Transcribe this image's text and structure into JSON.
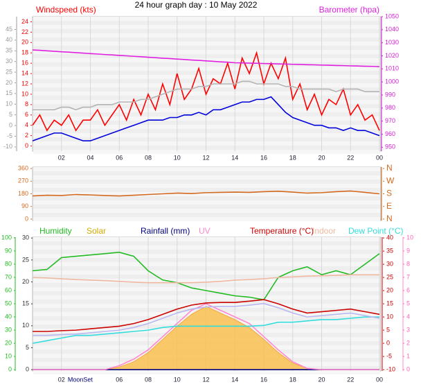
{
  "chart_data": [
    {
      "type": "line",
      "title": "24 hour graph day : 10 May 2022",
      "xlim": [
        0,
        24
      ],
      "xticks": [
        {
          "value": 2,
          "label": "02"
        },
        {
          "value": 4,
          "label": "04"
        },
        {
          "value": 6,
          "label": "06"
        },
        {
          "value": 8,
          "label": "08"
        },
        10,
        12,
        14,
        16,
        18,
        20,
        22,
        {
          "value": 24,
          "label": "00"
        }
      ],
      "grid": true,
      "x": [
        0,
        0.5,
        1,
        1.5,
        2,
        2.5,
        3,
        3.5,
        4,
        4.5,
        5,
        5.5,
        6,
        6.5,
        7,
        7.5,
        8,
        8.5,
        9,
        9.5,
        10,
        10.5,
        11,
        11.5,
        12,
        12.5,
        13,
        13.5,
        14,
        14.5,
        15,
        15.5,
        16,
        16.5,
        17,
        17.5,
        18,
        18.5,
        19,
        19.5,
        20,
        20.5,
        21,
        21.5,
        22,
        22.5,
        23,
        23.5,
        24
      ],
      "ylim": [
        -1,
        25
      ],
      "yticks": [
        0,
        2,
        4,
        6,
        8,
        10,
        12,
        14,
        16,
        18,
        20,
        22,
        24
      ],
      "y3lim": [
        -12,
        51
      ],
      "y3ticks": [
        -10,
        -5,
        0,
        5,
        10,
        15,
        20,
        25,
        30,
        35,
        40,
        45
      ],
      "y2lim": [
        947,
        1050
      ],
      "y2ticks": [
        950,
        960,
        970,
        980,
        990,
        1000,
        1010,
        1020,
        1030,
        1040,
        1050
      ],
      "series": [
        {
          "name": "Windspeed (kts)",
          "color": "#ff0000",
          "values": [
            4,
            6,
            3,
            5,
            4,
            6,
            3,
            5,
            5,
            7,
            4,
            6,
            8,
            5,
            9,
            6,
            10,
            7,
            12,
            8,
            14,
            9,
            11,
            15,
            10,
            13,
            12,
            16,
            11,
            17,
            14,
            18,
            12,
            16,
            13,
            17,
            9,
            12,
            7,
            10,
            6,
            9,
            8,
            11,
            6,
            8,
            5,
            6,
            3
          ]
        },
        {
          "color": "#0000dd",
          "values": [
            1,
            1.5,
            2,
            2.5,
            2.5,
            2,
            1.5,
            1,
            1,
            1.5,
            2,
            2.5,
            3,
            3.5,
            4,
            4.5,
            5,
            5,
            5,
            5.5,
            5.5,
            6,
            6,
            6.5,
            6,
            7,
            7,
            7.5,
            8,
            8.5,
            8.5,
            9,
            9,
            9.5,
            8,
            6.5,
            5.5,
            5,
            4.5,
            4,
            4,
            3.5,
            3.5,
            3,
            3.5,
            3,
            3,
            2.5,
            2
          ]
        },
        {
          "color": "#b4b4b4",
          "values": [
            7,
            7,
            7,
            7,
            7.5,
            7.5,
            7,
            7.5,
            7.5,
            8,
            8,
            8,
            8.5,
            8.5,
            8.5,
            9,
            9,
            9.5,
            10,
            10.5,
            11,
            11,
            11,
            11.5,
            11.5,
            12,
            12,
            12,
            12,
            12.5,
            12.5,
            12,
            12,
            12,
            12,
            11.5,
            11.5,
            11,
            11,
            11,
            11,
            11,
            10.5,
            11,
            11,
            11,
            10.5,
            10.5,
            10.5
          ]
        },
        {
          "name": "Barometer (hpa)",
          "color": "#e020e0",
          "axis": "y2",
          "values": [
            1024.5,
            1024.2,
            1023.8,
            1023.5,
            1023.1,
            1022.8,
            1022.4,
            1022.1,
            1021.7,
            1021.4,
            1021.0,
            1020.7,
            1020.3,
            1020.0,
            1019.6,
            1019.3,
            1018.9,
            1018.6,
            1018.2,
            1017.9,
            1017.5,
            1017.2,
            1016.8,
            1016.5,
            1016.1,
            1015.8,
            1015.4,
            1015.1,
            1014.7,
            1014.6,
            1014.4,
            1014.3,
            1014.1,
            1014.0,
            1013.8,
            1013.7,
            1013.5,
            1013.4,
            1013.2,
            1013.1,
            1012.9,
            1012.8,
            1012.6,
            1012.5,
            1012.3,
            1012.2,
            1012.0,
            1011.9,
            1011.7
          ]
        }
      ]
    },
    {
      "type": "line",
      "xlim": [
        0,
        24
      ],
      "grid": true,
      "x": [
        0,
        1,
        2,
        3,
        4,
        5,
        6,
        7,
        8,
        9,
        10,
        11,
        12,
        13,
        14,
        15,
        16,
        17,
        18,
        19,
        20,
        21,
        22,
        23,
        24
      ],
      "ylim": [
        -10,
        370
      ],
      "yticks": [
        0,
        90,
        180,
        270,
        360
      ],
      "y2lim": [
        -10,
        370
      ],
      "y2ticks": [
        {
          "value": 360,
          "label": "N"
        },
        {
          "value": 270,
          "label": "W"
        },
        {
          "value": 180,
          "label": "S"
        },
        {
          "value": 90,
          "label": "E"
        },
        {
          "value": 0,
          "label": "N"
        }
      ],
      "series": [
        {
          "color": "#d2691e",
          "values": [
            165,
            170,
            168,
            175,
            172,
            168,
            165,
            170,
            175,
            180,
            185,
            182,
            188,
            190,
            192,
            190,
            195,
            198,
            192,
            185,
            188,
            195,
            200,
            190,
            180
          ]
        }
      ]
    },
    {
      "type": "line",
      "xlim": [
        0,
        24
      ],
      "xticks": [
        {
          "value": 2,
          "label": "02"
        },
        {
          "value": 6,
          "label": "06"
        },
        {
          "value": 8,
          "label": "08"
        },
        10,
        12,
        14,
        16,
        18,
        20,
        22,
        {
          "value": 24,
          "label": "00"
        }
      ],
      "annotations": [
        {
          "text": "MoonSet",
          "x": 3.3
        }
      ],
      "grid": true,
      "x": [
        0,
        1,
        2,
        3,
        4,
        5,
        6,
        7,
        8,
        9,
        10,
        11,
        12,
        13,
        14,
        15,
        16,
        17,
        18,
        19,
        20,
        21,
        22,
        23,
        24
      ],
      "ylim": [
        -1,
        100.5
      ],
      "yticks": [
        0,
        10,
        20,
        30,
        40,
        50,
        60,
        70,
        80,
        90,
        100
      ],
      "y3lim": [
        -0.3,
        30.2
      ],
      "y3ticks": [
        0,
        5,
        10,
        15,
        20,
        25,
        30
      ],
      "y2lim": [
        -10.5,
        40.3
      ],
      "y2ticks": [
        -10,
        -5,
        0,
        5,
        10,
        15,
        20,
        25,
        30,
        35,
        40
      ],
      "y4lim": [
        -0.1,
        10.05
      ],
      "y4ticks": [
        0,
        1,
        2,
        3,
        4,
        5,
        6,
        7,
        8,
        9,
        10
      ],
      "series": [
        {
          "name": "Humidity",
          "color": "#22bb22",
          "values": [
            75,
            76,
            85,
            86,
            87,
            88,
            89,
            86,
            75,
            68,
            66,
            62,
            60,
            58,
            56,
            55,
            53,
            70,
            75,
            78,
            72,
            75,
            72,
            80,
            88
          ]
        },
        {
          "name": "Solar",
          "color": "#d4a800",
          "axis": "y4",
          "style": "area",
          "values": [
            0,
            0,
            0,
            0,
            0,
            0,
            0.2,
            0.6,
            1.3,
            2.3,
            3.3,
            4.2,
            4.8,
            4.3,
            3.8,
            3.2,
            2.3,
            1.3,
            0.5,
            0.1,
            0,
            0,
            0,
            0,
            0
          ]
        },
        {
          "name": "Rainfall (mm)",
          "color": "#000080",
          "axis": "y3",
          "values": [
            0,
            0,
            0,
            0,
            0,
            0,
            0,
            0,
            0,
            0,
            0,
            0,
            0,
            0,
            0,
            0,
            0,
            0,
            0,
            0,
            0,
            0,
            0,
            0,
            0
          ]
        },
        {
          "name": "UV",
          "color": "#ff88cc",
          "axis": "y4",
          "values": [
            0,
            0,
            0,
            0,
            0,
            0,
            0.3,
            0.8,
            1.5,
            2.5,
            3.5,
            4.5,
            5,
            4.5,
            4,
            3.5,
            2.5,
            1.5,
            0.6,
            0.1,
            0,
            0,
            0,
            0,
            0
          ]
        },
        {
          "name": "Temperature (°C)",
          "color": "#cc0000",
          "axis": "y2",
          "values": [
            4.5,
            4.5,
            4.8,
            5,
            5.5,
            6,
            6.5,
            7.5,
            9,
            11,
            13,
            14.5,
            15.3,
            15.5,
            15.5,
            16,
            16.6,
            15,
            13,
            11.5,
            12,
            12.5,
            13,
            12,
            11
          ]
        },
        {
          "name": "Indoor",
          "color": "#f0b8a0",
          "axis": "y2",
          "values": [
            25,
            24.8,
            24.5,
            24.2,
            24,
            23.8,
            23.5,
            23.2,
            23,
            23,
            23,
            23,
            23.2,
            23.5,
            24,
            24.2,
            24.5,
            25,
            25.2,
            25.5,
            25.6,
            25.8,
            26,
            26,
            26
          ]
        },
        {
          "name": "Dew Point (°C)",
          "color": "#33dddd",
          "axis": "y2",
          "values": [
            0,
            1,
            2,
            3,
            3,
            3.5,
            4,
            4.5,
            5,
            6,
            6.5,
            6.5,
            6.5,
            6.5,
            6.5,
            6.5,
            6.8,
            8,
            8,
            8.5,
            9,
            9,
            9.5,
            10,
            10
          ]
        },
        {
          "color": "#b8b8f0",
          "axis": "y2",
          "values": [
            3,
            3,
            3.3,
            3.5,
            4,
            4.5,
            5,
            6,
            7.5,
            9.5,
            11.5,
            13,
            13.8,
            14,
            14,
            14.5,
            15.1,
            13.5,
            11.5,
            10,
            10.5,
            11,
            11.5,
            10.5,
            9.5
          ]
        }
      ]
    }
  ]
}
